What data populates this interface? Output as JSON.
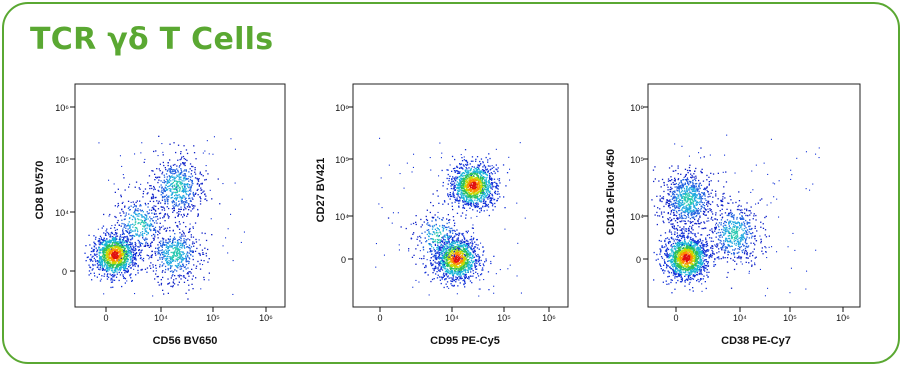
{
  "title": "TCR γδ T Cells",
  "colors": {
    "accent": "#5aa832",
    "frame": "#5aa832"
  },
  "chart_data": [
    {
      "type": "scatter",
      "subtype": "flow-cytometry-density",
      "xlabel": "CD56 BV650",
      "ylabel": "CD8 BV570",
      "x_ticks": [
        "0",
        "10⁴",
        "10⁵",
        "10⁶"
      ],
      "y_ticks": [
        "0",
        "10⁴",
        "10⁵",
        "10⁶"
      ],
      "scale": "biexponential",
      "populations": [
        {
          "x": 1500,
          "y": 2800,
          "weight": 0.45,
          "hot": true
        },
        {
          "x": 20000,
          "y": 30000,
          "weight": 0.22,
          "hot": false
        },
        {
          "x": 18000,
          "y": 3000,
          "weight": 0.2,
          "hot": false
        },
        {
          "x": 6000,
          "y": 8000,
          "weight": 0.13,
          "hot": false
        }
      ]
    },
    {
      "type": "scatter",
      "subtype": "flow-cytometry-density",
      "xlabel": "CD95 PE-Cy5",
      "ylabel": "CD27 BV421",
      "x_ticks": [
        "0",
        "10⁴",
        "10⁵",
        "10⁶"
      ],
      "y_ticks": [
        "0",
        "10⁴",
        "10⁵",
        "10⁶"
      ],
      "scale": "biexponential",
      "populations": [
        {
          "x": 25000,
          "y": 35000,
          "weight": 0.45,
          "hot": true
        },
        {
          "x": 12000,
          "y": 200,
          "weight": 0.45,
          "hot": true
        },
        {
          "x": 8000,
          "y": 5000,
          "weight": 0.1,
          "hot": false
        }
      ]
    },
    {
      "type": "scatter",
      "subtype": "flow-cytometry-density",
      "xlabel": "CD38 PE-Cy7",
      "ylabel": "CD16 eFluor 450",
      "x_ticks": [
        "0",
        "10⁴",
        "10⁵",
        "10⁶"
      ],
      "y_ticks": [
        "0",
        "10⁴",
        "10⁵",
        "10⁶"
      ],
      "scale": "biexponential",
      "populations": [
        {
          "x": 1500,
          "y": 400,
          "weight": 0.5,
          "hot": true
        },
        {
          "x": 1800,
          "y": 20000,
          "weight": 0.3,
          "hot": false
        },
        {
          "x": 9000,
          "y": 6000,
          "weight": 0.2,
          "hot": false
        }
      ]
    }
  ]
}
